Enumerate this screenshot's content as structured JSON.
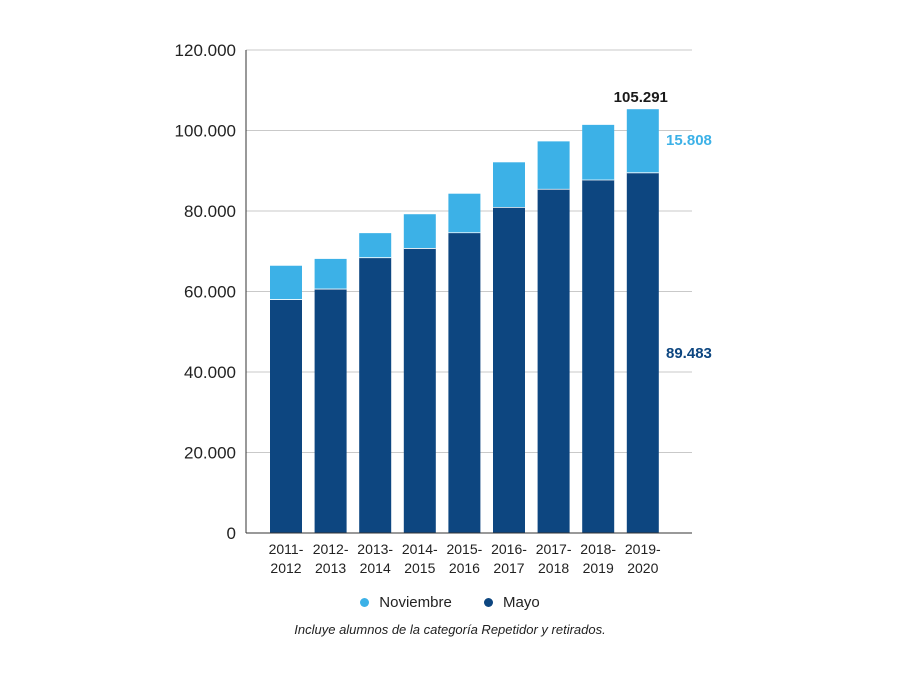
{
  "chart_data": {
    "type": "bar",
    "stacked": true,
    "categories": [
      [
        "2011-",
        "2012"
      ],
      [
        "2012-",
        "2013"
      ],
      [
        "2013-",
        "2014"
      ],
      [
        "2014-",
        "2015"
      ],
      [
        "2015-",
        "2016"
      ],
      [
        "2016-",
        "2017"
      ],
      [
        "2017-",
        "2018"
      ],
      [
        "2018-",
        "2019"
      ],
      [
        "2019-",
        "2020"
      ]
    ],
    "series": [
      {
        "name": "Mayo",
        "color": "#0d4680",
        "values": [
          58000,
          60600,
          68400,
          70700,
          74600,
          80900,
          85400,
          87700,
          89483
        ]
      },
      {
        "name": "Noviembre",
        "color": "#3cb1e7",
        "values": [
          8400,
          7500,
          6100,
          8500,
          9700,
          11200,
          11900,
          13700,
          15808
        ]
      }
    ],
    "ylim": [
      0,
      120000
    ],
    "yticks": [
      {
        "value": 0,
        "label": "0"
      },
      {
        "value": 20000,
        "label": "20.000"
      },
      {
        "value": 40000,
        "label": "40.000"
      },
      {
        "value": 60000,
        "label": "60.000"
      },
      {
        "value": 80000,
        "label": "80.000"
      },
      {
        "value": 100000,
        "label": "100.000"
      },
      {
        "value": 120000,
        "label": "120.000"
      }
    ],
    "grid": true,
    "legend_position": "bottom",
    "legend": [
      {
        "label": "Noviembre",
        "color": "#3cb1e7"
      },
      {
        "label": "Mayo",
        "color": "#0d4680"
      }
    ],
    "annotations": {
      "total": {
        "text": "105.291",
        "color": "#1a1a1a"
      },
      "noviembre_last": {
        "text": "15.808",
        "color": "#3cb1e7"
      },
      "mayo_last": {
        "text": "89.483",
        "color": "#0d4680"
      }
    },
    "note": "Incluye alumnos de la categoría Repetidor y retirados."
  }
}
